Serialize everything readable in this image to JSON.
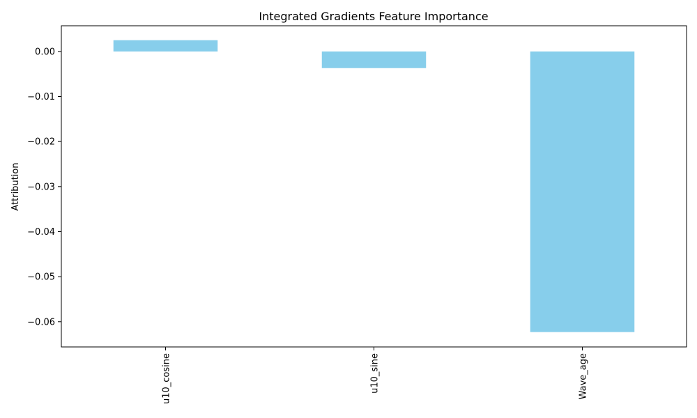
{
  "chart_data": {
    "type": "bar",
    "title": "Integrated Gradients Feature Importance",
    "xlabel": "",
    "ylabel": "Attribution",
    "categories": [
      "u10_cosine",
      "u10_sine",
      "Wave_age"
    ],
    "values": [
      0.0025,
      -0.0037,
      -0.0623
    ],
    "ylim": [
      -0.0656,
      0.0057
    ],
    "yticks": [
      0.0,
      -0.01,
      -0.02,
      -0.03,
      -0.04,
      -0.05,
      -0.06
    ],
    "ytick_labels": [
      "0.00",
      "−0.01",
      "−0.02",
      "−0.03",
      "−0.04",
      "−0.05",
      "−0.06"
    ],
    "bar_color": "#87ceeb",
    "grid": false,
    "legend": false,
    "xtick_rotation": "vertical"
  }
}
